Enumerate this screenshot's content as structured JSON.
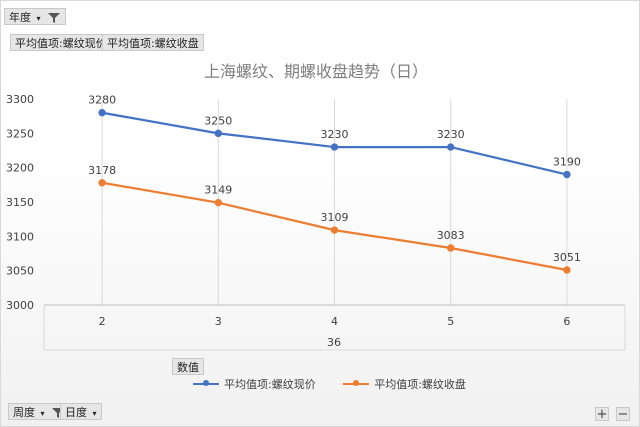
{
  "filters": {
    "year_label": "年度",
    "week_label": "周度",
    "day_label": "日度"
  },
  "value_fields": [
    "平均值项:螺纹现价",
    "平均值项:螺纹收盘"
  ],
  "values_button_label": "数值",
  "zoom": {
    "plus": "+",
    "minus": "−"
  },
  "chart_data": {
    "type": "line",
    "title": "上海螺纹、期螺收盘趋势（日）",
    "categories": [
      "2",
      "3",
      "4",
      "5",
      "6"
    ],
    "group_label": "36",
    "ylim": [
      3000,
      3300
    ],
    "yticks": [
      3000,
      3050,
      3100,
      3150,
      3200,
      3250,
      3300
    ],
    "grid": "vertical",
    "legend_position": "bottom",
    "series": [
      {
        "name": "平均值项:螺纹现价",
        "color": "#4472C4",
        "values": [
          3280,
          3250,
          3230,
          3230,
          3190
        ]
      },
      {
        "name": "平均值项:螺纹收盘",
        "color": "#ED7D31",
        "values": [
          3178,
          3149,
          3109,
          3083,
          3051
        ]
      }
    ]
  }
}
